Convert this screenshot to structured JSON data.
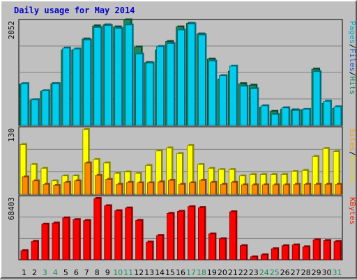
{
  "chart_data": {
    "type": "bar",
    "title": "Daily usage for May 2014",
    "days": [
      "1",
      "2",
      "3",
      "4",
      "5",
      "6",
      "7",
      "8",
      "9",
      "10",
      "11",
      "12",
      "13",
      "14",
      "15",
      "16",
      "17",
      "18",
      "19",
      "20",
      "21",
      "22",
      "23",
      "24",
      "25",
      "26",
      "27",
      "28",
      "29",
      "30",
      "31"
    ],
    "weekend_days": [
      "3",
      "4",
      "10",
      "11",
      "17",
      "18",
      "24",
      "25",
      "31"
    ],
    "panels": [
      {
        "id": "top",
        "max_label": "2052",
        "max": 2052,
        "legend": [
          {
            "text": "Pages",
            "color": "#00aacc"
          },
          {
            "text": "/",
            "color": "#000000"
          },
          {
            "text": "Files",
            "color": "#2255cc"
          },
          {
            "text": "/",
            "color": "#000000"
          },
          {
            "text": "Hits",
            "color": "#1a8a5a"
          }
        ],
        "series": [
          {
            "name": "Hits",
            "color": "#1a8a5a",
            "values": [
              820,
              500,
              680,
              830,
              1500,
              1500,
              1720,
              1980,
              2000,
              1960,
              2100,
              1560,
              1250,
              1500,
              1670,
              1960,
              2030,
              1820,
              1320,
              920,
              1080,
              830,
              800,
              360,
              280,
              320,
              310,
              310,
              1120,
              440,
              340
            ]
          },
          {
            "name": "Files",
            "color": "#00ccee",
            "values": [
              830,
              510,
              690,
              830,
              1540,
              1520,
              1700,
              1950,
              1990,
              1930,
              2000,
              1420,
              1240,
              1570,
              1630,
              1900,
              2020,
              1800,
              1280,
              990,
              1180,
              780,
              730,
              390,
              220,
              350,
              300,
              320,
              1070,
              480,
              370
            ]
          }
        ]
      },
      {
        "id": "middle",
        "max_label": "130",
        "max": 130,
        "legend": [
          {
            "text": "Sites",
            "color": "#ff9900"
          },
          {
            "text": "/",
            "color": "#000000"
          },
          {
            "text": "Visits",
            "color": "#e6d000"
          }
        ],
        "series": [
          {
            "name": "Visits",
            "color": "#ffff00",
            "values": [
              100,
              60,
              52,
              27,
              37,
              37,
              130,
              70,
              63,
              42,
              45,
              42,
              58,
              87,
              93,
              82,
              98,
              60,
              52,
              50,
              50,
              37,
              40,
              40,
              40,
              40,
              46,
              48,
              76,
              92,
              86
            ]
          },
          {
            "name": "Sites",
            "color": "#ff8800",
            "values": [
              35,
              27,
              20,
              18,
              24,
              27,
              63,
              38,
              30,
              20,
              24,
              23,
              23,
              25,
              28,
              20,
              23,
              28,
              24,
              20,
              24,
              19,
              19,
              19,
              19,
              19,
              20,
              20,
              20,
              20,
              20
            ]
          }
        ]
      },
      {
        "id": "bottom",
        "max_label": "68403",
        "max": 68403,
        "legend": [
          {
            "text": "KBytes",
            "color": "#ee2200"
          }
        ],
        "series": [
          {
            "name": "KBytes",
            "color": "#ff0000",
            "values": [
              10200,
              20500,
              39800,
              41000,
              46800,
              44900,
              43800,
              68400,
              60300,
              54800,
              57800,
              44000,
              19800,
              27100,
              51800,
              54100,
              59300,
              58200,
              28900,
              23500,
              53600,
              15800,
              3300,
              5600,
              12300,
              15700,
              16600,
              14500,
              22300,
              21500,
              20400
            ]
          }
        ]
      }
    ]
  }
}
